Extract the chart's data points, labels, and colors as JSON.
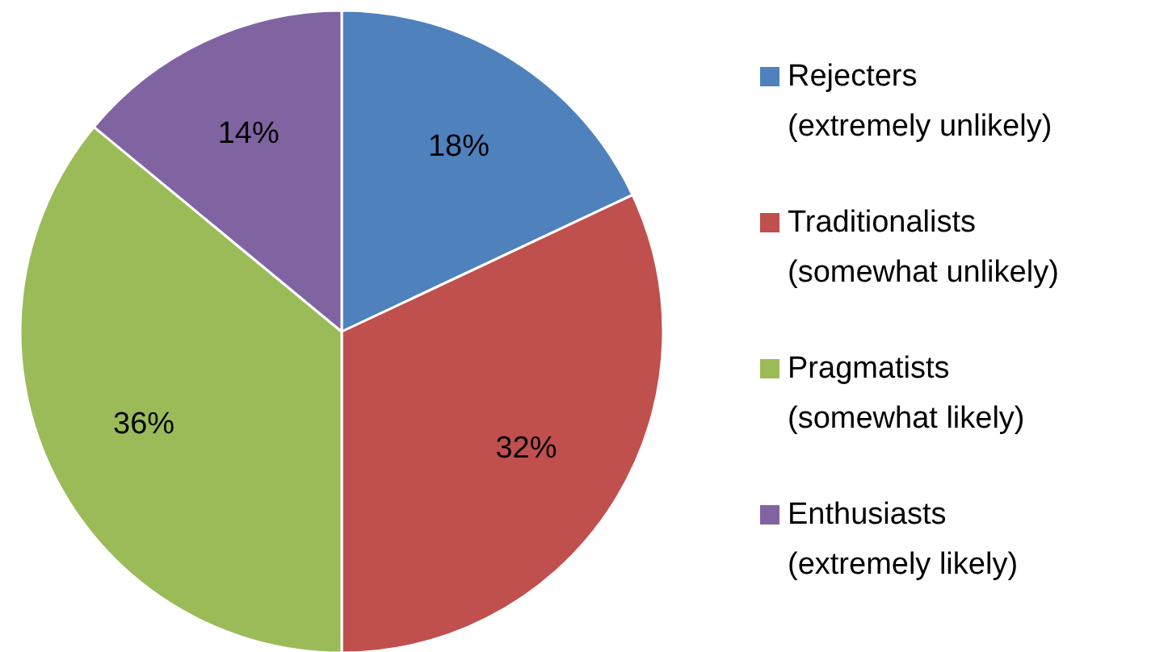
{
  "chart_data": {
    "type": "pie",
    "categories": [
      "Rejecters\n(extremely unlikely)",
      "Traditionalists\n(somewhat unlikely)",
      "Pragmatists\n(somewhat likely)",
      "Enthusiasts\n(extremely likely)"
    ],
    "values": [
      18,
      32,
      36,
      14
    ],
    "colors": [
      "#4f81bd",
      "#c0504d",
      "#9bbb59",
      "#8064a2"
    ],
    "value_labels": [
      "18%",
      "32%",
      "36%",
      "14%"
    ],
    "legend": "right"
  }
}
